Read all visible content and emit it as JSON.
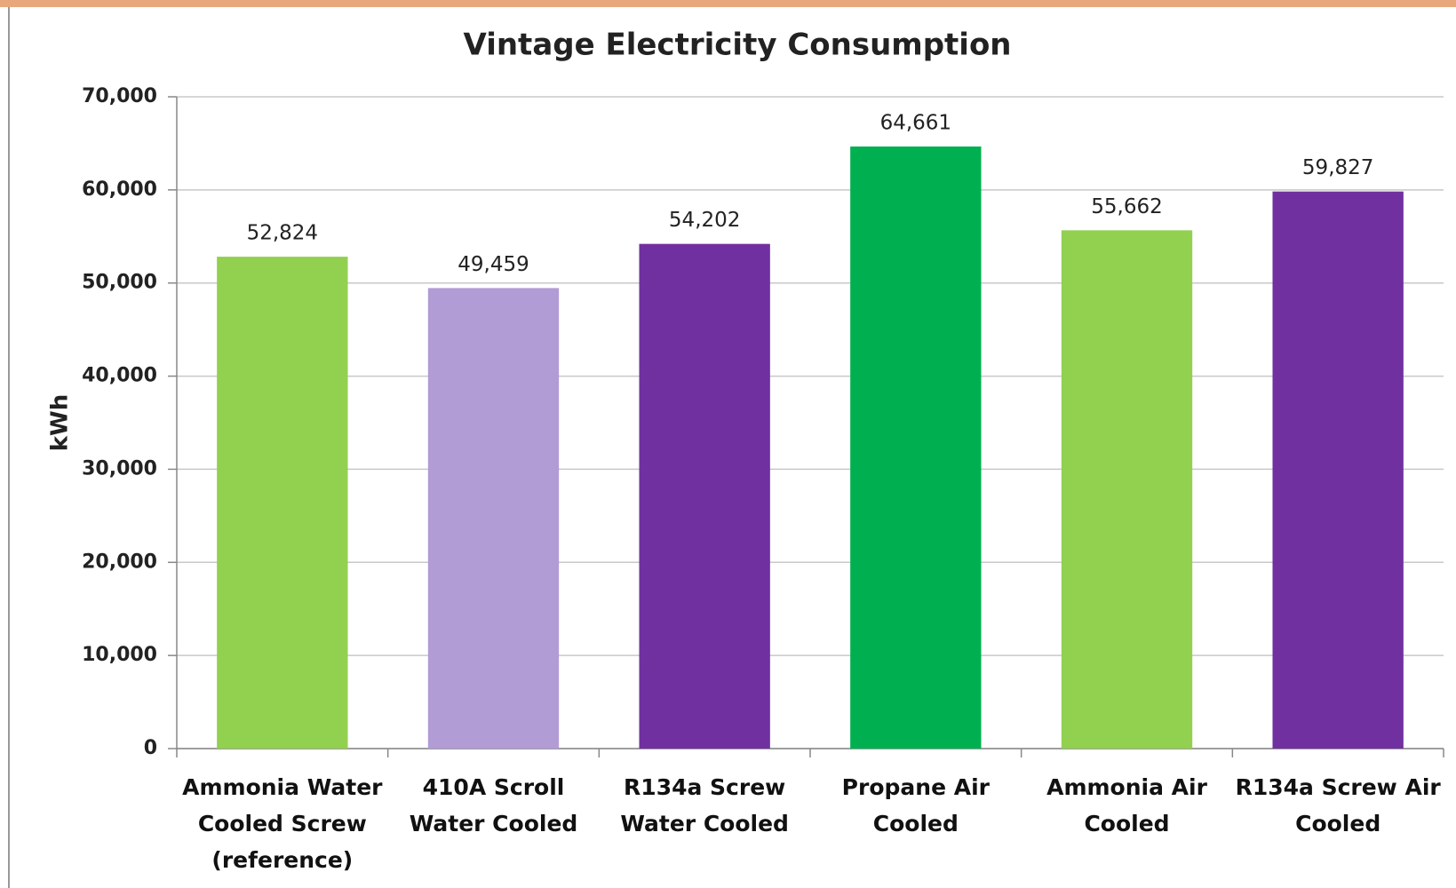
{
  "chart_data": {
    "type": "bar",
    "title": "Vintage Electricity Consumption",
    "y_label": "kWh",
    "categories": [
      "Ammonia Water\nCooled Screw\n(reference)",
      "410A Scroll\nWater Cooled",
      "R134a Screw\nWater Cooled",
      "Propane Air\nCooled",
      "Ammonia Air\nCooled",
      "R134a Screw Air\nCooled"
    ],
    "values": [
      52824,
      49459,
      54202,
      64661,
      55662,
      59827
    ],
    "value_labels": [
      "52,824",
      "49,459",
      "54,202",
      "64,661",
      "55,662",
      "59,827"
    ],
    "colors": [
      "#92d050",
      "#b19cd5",
      "#7030a0",
      "#00b050",
      "#92d050",
      "#7030a0"
    ],
    "ylim": [
      0,
      70000
    ],
    "yticks": [
      0,
      {
        "value": 10000,
        "label": "10,000"
      },
      {
        "value": 20000,
        "label": "20,000"
      },
      {
        "value": 30000,
        "label": "30,000"
      },
      {
        "value": 40000,
        "label": "40,000"
      },
      {
        "value": 50000,
        "label": "50,000"
      },
      {
        "value": 60000,
        "label": "60,000"
      },
      {
        "value": 70000,
        "label": "70,000"
      }
    ],
    "grid": true
  }
}
